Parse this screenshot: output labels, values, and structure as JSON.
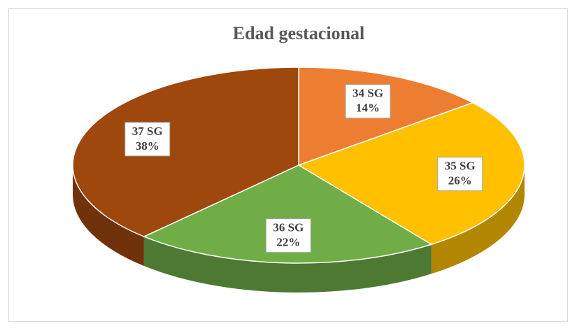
{
  "chart_data": {
    "type": "pie",
    "title": "Edad gestacional",
    "categories": [
      "34 SG",
      "35 SG",
      "36 SG",
      "37 SG"
    ],
    "values": [
      14,
      26,
      22,
      38
    ],
    "value_labels": [
      "14%",
      "26%",
      "22%",
      "38%"
    ],
    "colors": [
      "#ed7d31",
      "#ffc000",
      "#70ad47",
      "#9e480e"
    ]
  }
}
